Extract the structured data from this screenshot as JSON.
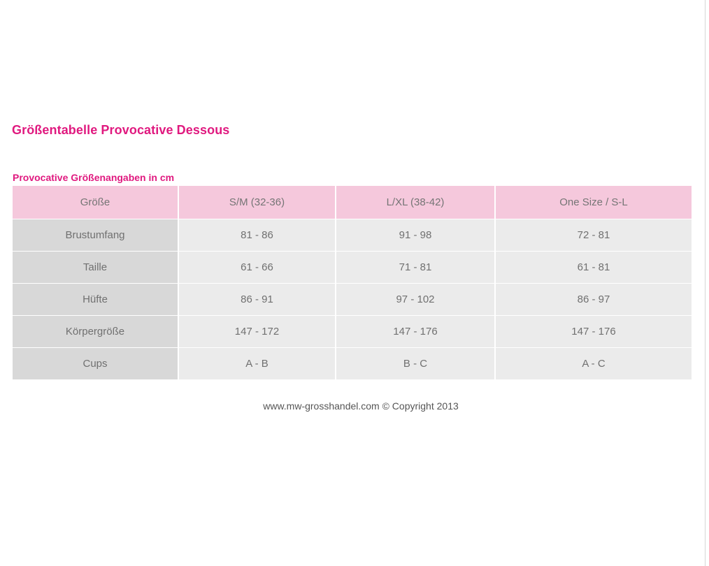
{
  "page": {
    "title": "Größentabelle Provocative Dessous",
    "table_caption": "Provocative Größenangaben in cm",
    "copyright": "www.mw-grosshandel.com © Copyright 2013"
  },
  "colors": {
    "accent": "#e0197f",
    "header_bg": "#f5c8dc",
    "label_bg": "#d8d8d8",
    "cell_bg": "#ebebeb"
  },
  "table": {
    "headers": [
      "Größe",
      "S/M (32-36)",
      "L/XL (38-42)",
      "One Size / S-L"
    ],
    "rows": [
      [
        "Brustumfang",
        "81 - 86",
        "91 - 98",
        "72 - 81"
      ],
      [
        "Taille",
        "61 - 66",
        "71 - 81",
        "61 - 81"
      ],
      [
        "Hüfte",
        "86 - 91",
        "97 - 102",
        "86 - 97"
      ],
      [
        "Körpergröße",
        "147 - 172",
        "147 - 176",
        "147 - 176"
      ],
      [
        "Cups",
        "A - B",
        "B - C",
        "A - C"
      ]
    ]
  }
}
